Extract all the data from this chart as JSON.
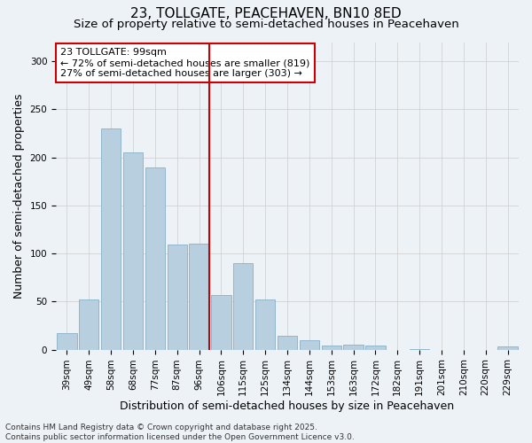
{
  "title": "23, TOLLGATE, PEACEHAVEN, BN10 8ED",
  "subtitle": "Size of property relative to semi-detached houses in Peacehaven",
  "xlabel": "Distribution of semi-detached houses by size in Peacehaven",
  "ylabel": "Number of semi-detached properties",
  "categories": [
    "39sqm",
    "49sqm",
    "58sqm",
    "68sqm",
    "77sqm",
    "87sqm",
    "96sqm",
    "106sqm",
    "115sqm",
    "125sqm",
    "134sqm",
    "144sqm",
    "153sqm",
    "163sqm",
    "172sqm",
    "182sqm",
    "191sqm",
    "201sqm",
    "210sqm",
    "220sqm",
    "229sqm"
  ],
  "values": [
    17,
    52,
    230,
    205,
    190,
    109,
    110,
    57,
    90,
    52,
    14,
    10,
    4,
    5,
    4,
    0,
    1,
    0,
    0,
    0,
    3
  ],
  "bar_color": "#b8cfe0",
  "bar_edge_color": "#8aafc8",
  "vline_color": "#cc0000",
  "vline_index": 6,
  "annotation_text_line1": "23 TOLLGATE: 99sqm",
  "annotation_text_line2": "← 72% of semi-detached houses are smaller (819)",
  "annotation_text_line3": "27% of semi-detached houses are larger (303) →",
  "annotation_box_color": "#ffffff",
  "annotation_border_color": "#cc0000",
  "ylim": [
    0,
    320
  ],
  "yticks": [
    0,
    50,
    100,
    150,
    200,
    250,
    300
  ],
  "grid_color": "#cccccc",
  "background_color": "#edf2f7",
  "footer_text": "Contains HM Land Registry data © Crown copyright and database right 2025.\nContains public sector information licensed under the Open Government Licence v3.0.",
  "title_fontsize": 11,
  "subtitle_fontsize": 9.5,
  "ylabel_fontsize": 9,
  "xlabel_fontsize": 9,
  "tick_fontsize": 7.5,
  "annotation_fontsize": 8,
  "footer_fontsize": 6.5
}
